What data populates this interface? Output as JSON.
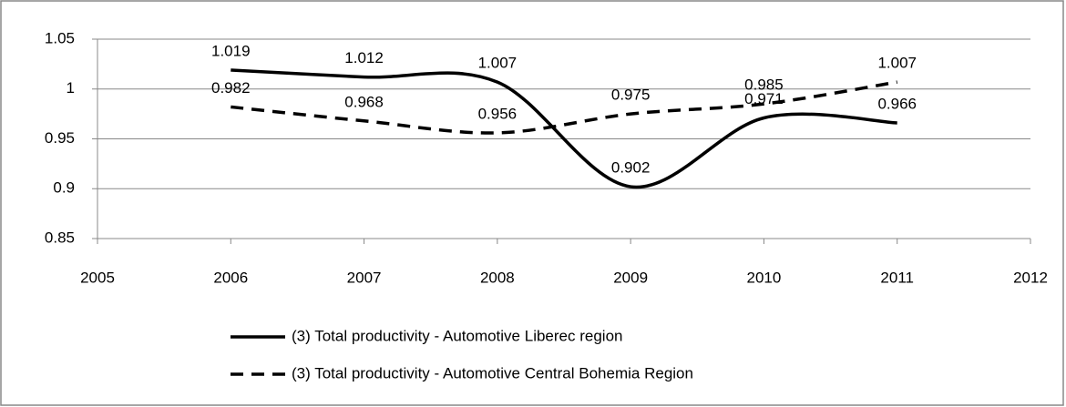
{
  "chart_data": {
    "type": "line",
    "x": [
      2006,
      2007,
      2008,
      2009,
      2010,
      2011
    ],
    "series": [
      {
        "name": "(3) Total productivity - Automotive Liberec region",
        "color": "#000000",
        "dash": "solid",
        "values": [
          1.019,
          1.012,
          1.007,
          0.902,
          0.971,
          0.966
        ]
      },
      {
        "name": "(3) Total productivity - Automotive Central Bohemia Region",
        "color": "#000000",
        "dash": "dashed",
        "values": [
          0.982,
          0.968,
          0.956,
          0.975,
          0.985,
          1.007
        ]
      }
    ],
    "xlim": [
      2005,
      2012
    ],
    "xticks": [
      2005,
      2006,
      2007,
      2008,
      2009,
      2010,
      2011,
      2012
    ],
    "ylim": [
      0.85,
      1.05
    ],
    "yticks": [
      0.85,
      0.9,
      0.95,
      1,
      1.05
    ],
    "grid": true,
    "legend": "bottom",
    "smooth": true
  }
}
